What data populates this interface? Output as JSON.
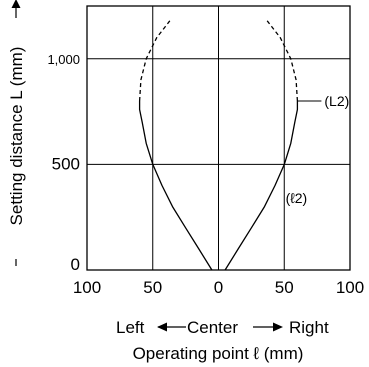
{
  "chart_data": {
    "type": "line",
    "xlabel": "Operating point ℓ (mm)",
    "direction_label": {
      "left": "Left",
      "center": "Center",
      "right": "Right"
    },
    "ylabel": "Setting distance L (mm)",
    "xlim": [
      -100,
      100
    ],
    "ylim": [
      0,
      1250
    ],
    "x_ticks": [
      {
        "value": -100,
        "label": "100"
      },
      {
        "value": -50,
        "label": "50"
      },
      {
        "value": 0,
        "label": "0"
      },
      {
        "value": 50,
        "label": "50"
      },
      {
        "value": 100,
        "label": "100"
      }
    ],
    "y_ticks": [
      {
        "value": 0,
        "label": "0"
      },
      {
        "value": 500,
        "label": "500"
      },
      {
        "value": 1000,
        "label": "1,000"
      }
    ],
    "grid": true,
    "series": [
      {
        "name": "(L2)",
        "side": "right",
        "style": "solid",
        "x": [
          5,
          15,
          25,
          35,
          43,
          50,
          55,
          58,
          60,
          60
        ],
        "y": [
          0,
          100,
          200,
          300,
          400,
          500,
          600,
          700,
          760,
          800
        ]
      },
      {
        "name": "(L2)",
        "side": "right",
        "style": "dashed",
        "x": [
          60,
          59,
          55,
          47,
          37
        ],
        "y": [
          800,
          900,
          1000,
          1100,
          1180
        ]
      },
      {
        "name": "(ℓ2)",
        "side": "left",
        "style": "solid",
        "x": [
          -5,
          -15,
          -25,
          -35,
          -43,
          -50,
          -55,
          -58,
          -60,
          -60
        ],
        "y": [
          0,
          100,
          200,
          300,
          400,
          500,
          600,
          700,
          760,
          800
        ]
      },
      {
        "name": "(ℓ2)",
        "side": "left",
        "style": "dashed",
        "x": [
          -60,
          -59,
          -55,
          -47,
          -37
        ],
        "y": [
          800,
          900,
          1000,
          1100,
          1180
        ]
      }
    ],
    "annotations": [
      {
        "text": "(L2)",
        "x": 62,
        "y": 800
      },
      {
        "text": "(ℓ2)",
        "x": 52,
        "y": 340
      }
    ]
  }
}
